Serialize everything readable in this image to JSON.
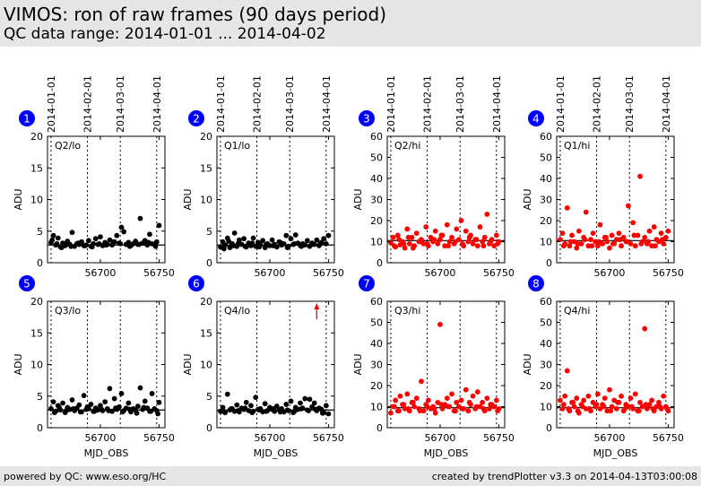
{
  "header": {
    "title": "VIMOS: ron of raw frames (90 days period)",
    "subtitle": "QC data range: 2014-01-01 ... 2014-04-02"
  },
  "footer": {
    "left": "powered by QC: www.eso.org/HC",
    "right": "created by trendPlotter v3.3 on 2014-04-13T03:00:08"
  },
  "colors": {
    "lo": "#000000",
    "hi": "#ff0000",
    "badge": "#0000ff"
  },
  "date_labels": [
    "2014-01-01",
    "2014-02-01",
    "2014-03-01",
    "2014-04-01"
  ],
  "date_mjd": [
    56658,
    56689,
    56717,
    56748
  ],
  "chart_data": [
    {
      "type": "scatter",
      "panel": "1",
      "label": "Q2/lo",
      "ylabel": "ADU",
      "xlabel": "",
      "ylim": [
        0,
        20
      ],
      "yticks": [
        0,
        5,
        10,
        15,
        20
      ],
      "xlim": [
        56655,
        56755
      ],
      "xticks": [
        56700,
        56750
      ],
      "ref": 2.8,
      "color": "black",
      "x": [
        56658,
        56660,
        56662,
        56664,
        56666,
        56668,
        56670,
        56672,
        56674,
        56676,
        56678,
        56680,
        56682,
        56684,
        56686,
        56688,
        56690,
        56692,
        56694,
        56696,
        56698,
        56700,
        56702,
        56704,
        56706,
        56708,
        56710,
        56712,
        56714,
        56716,
        56718,
        56720,
        56722,
        56724,
        56726,
        56728,
        56730,
        56732,
        56734,
        56736,
        56738,
        56740,
        56742,
        56744,
        56746,
        56748,
        56750,
        56659,
        56663,
        56667,
        56671,
        56675,
        56681,
        56687,
        56693,
        56699,
        56705,
        56711,
        56717,
        56725,
        56733,
        56741,
        56747
      ],
      "y": [
        3.2,
        4.3,
        2.8,
        3.9,
        2.5,
        3.1,
        2.7,
        3.4,
        2.9,
        4.8,
        2.6,
        3.0,
        2.9,
        3.3,
        2.7,
        2.8,
        3.5,
        2.6,
        3.0,
        3.8,
        2.9,
        4.1,
        2.7,
        3.2,
        2.9,
        3.6,
        2.8,
        3.3,
        4.3,
        3.1,
        5.6,
        4.9,
        2.9,
        3.2,
        2.7,
        3.0,
        3.4,
        2.9,
        7.0,
        3.1,
        3.5,
        2.8,
        4.5,
        3.0,
        2.9,
        3.3,
        5.9,
        3.6,
        3.0,
        2.4,
        2.9,
        2.6,
        3.1,
        2.7,
        2.5,
        3.0,
        2.8,
        3.3,
        3.0,
        2.6,
        2.9,
        3.2,
        2.6
      ]
    },
    {
      "type": "scatter",
      "panel": "2",
      "label": "Q1/lo",
      "ylabel": "ADU",
      "xlabel": "",
      "ylim": [
        0,
        20
      ],
      "yticks": [
        0,
        5,
        10,
        15,
        20
      ],
      "xlim": [
        56655,
        56755
      ],
      "xticks": [
        56700,
        56750
      ],
      "ref": 2.8,
      "color": "black",
      "x": [
        56658,
        56660,
        56662,
        56664,
        56666,
        56668,
        56670,
        56672,
        56674,
        56676,
        56678,
        56680,
        56682,
        56684,
        56686,
        56688,
        56690,
        56692,
        56694,
        56696,
        56698,
        56700,
        56702,
        56704,
        56706,
        56708,
        56710,
        56712,
        56714,
        56716,
        56718,
        56720,
        56722,
        56724,
        56726,
        56728,
        56730,
        56732,
        56734,
        56736,
        56738,
        56740,
        56742,
        56744,
        56746,
        56748,
        56750,
        56661,
        56665,
        56669,
        56673,
        56679,
        56685,
        56691,
        56697,
        56703,
        56709,
        56715,
        56721,
        56727,
        56735,
        56743
      ],
      "y": [
        2.5,
        3.3,
        2.8,
        3.9,
        2.4,
        3.0,
        4.7,
        2.6,
        3.6,
        2.9,
        3.8,
        2.5,
        3.1,
        2.7,
        3.9,
        2.6,
        3.2,
        2.8,
        3.5,
        2.4,
        3.0,
        2.7,
        3.6,
        2.9,
        2.5,
        3.3,
        2.8,
        3.0,
        4.3,
        2.6,
        3.8,
        2.9,
        4.4,
        3.1,
        2.7,
        3.0,
        2.8,
        3.5,
        2.6,
        3.1,
        2.9,
        3.6,
        2.7,
        3.2,
        3.8,
        3.0,
        4.3,
        2.2,
        3.4,
        2.7,
        3.0,
        2.6,
        3.1,
        2.5,
        2.9,
        2.7,
        3.2,
        2.4,
        3.0,
        2.6,
        2.8,
        3.1
      ]
    },
    {
      "type": "scatter",
      "panel": "3",
      "label": "Q2/hi",
      "ylabel": "ADU",
      "xlabel": "",
      "ylim": [
        0,
        60
      ],
      "yticks": [
        0,
        10,
        20,
        30,
        40,
        50,
        60
      ],
      "xlim": [
        56655,
        56755
      ],
      "xticks": [
        56700,
        56750
      ],
      "ref": 10.5,
      "color": "red",
      "x": [
        56658,
        56660,
        56662,
        56664,
        56666,
        56668,
        56670,
        56672,
        56674,
        56676,
        56678,
        56680,
        56682,
        56684,
        56686,
        56688,
        56690,
        56692,
        56694,
        56696,
        56698,
        56700,
        56702,
        56704,
        56706,
        56708,
        56710,
        56712,
        56714,
        56716,
        56718,
        56720,
        56722,
        56724,
        56726,
        56728,
        56730,
        56732,
        56734,
        56736,
        56738,
        56740,
        56742,
        56744,
        56746,
        56748,
        56750,
        56661,
        56665,
        56669,
        56673,
        56677,
        56683,
        56689,
        56695,
        56701,
        56707,
        56713,
        56719,
        56725,
        56731,
        56737,
        56743,
        56749
      ],
      "y": [
        9.5,
        12,
        7.5,
        13,
        8.5,
        10,
        7,
        16,
        9,
        12,
        8,
        14,
        10,
        11,
        9,
        17,
        8,
        12,
        10,
        15,
        9,
        11,
        13,
        8,
        18,
        10,
        12,
        9,
        16,
        11,
        20,
        8,
        15,
        10,
        13,
        9,
        11,
        8,
        17,
        10,
        12,
        23,
        9,
        11,
        8,
        13,
        10,
        8,
        11,
        9,
        12,
        7,
        10,
        9,
        11,
        13,
        8,
        10,
        9,
        12,
        11,
        8,
        10,
        9
      ]
    },
    {
      "type": "scatter",
      "panel": "4",
      "label": "Q1/hi",
      "ylabel": "ADU",
      "xlabel": "",
      "ylim": [
        0,
        60
      ],
      "yticks": [
        0,
        10,
        20,
        30,
        40,
        50,
        60
      ],
      "xlim": [
        56655,
        56755
      ],
      "xticks": [
        56700,
        56750
      ],
      "ref": 10.5,
      "color": "red",
      "x": [
        56658,
        56660,
        56662,
        56664,
        56666,
        56668,
        56670,
        56672,
        56674,
        56676,
        56678,
        56680,
        56682,
        56684,
        56686,
        56688,
        56690,
        56692,
        56694,
        56696,
        56698,
        56700,
        56702,
        56704,
        56706,
        56708,
        56710,
        56712,
        56714,
        56716,
        56718,
        56720,
        56722,
        56724,
        56726,
        56728,
        56730,
        56732,
        56734,
        56736,
        56738,
        56740,
        56742,
        56744,
        56746,
        56748,
        56750,
        56661,
        56667,
        56673,
        56679,
        56685,
        56691,
        56697,
        56703,
        56709,
        56715,
        56721,
        56727,
        56733,
        56739,
        56745
      ],
      "y": [
        11,
        14,
        9,
        26,
        8,
        13,
        10,
        7,
        15,
        9,
        12,
        24,
        8,
        11,
        14,
        10,
        8,
        18,
        9,
        12,
        10,
        7,
        13,
        9,
        11,
        14,
        8,
        12,
        10,
        27,
        9,
        19,
        8,
        13,
        41,
        10,
        12,
        9,
        15,
        8,
        17,
        11,
        10,
        14,
        9,
        12,
        15,
        8,
        10,
        9,
        11,
        8,
        10,
        12,
        9,
        11,
        10,
        13,
        9,
        10,
        8,
        11
      ]
    },
    {
      "type": "scatter",
      "panel": "5",
      "label": "Q3/lo",
      "ylabel": "ADU",
      "xlabel": "MJD_OBS",
      "ylim": [
        0,
        20
      ],
      "yticks": [
        0,
        5,
        10,
        15,
        20
      ],
      "xlim": [
        56655,
        56755
      ],
      "xticks": [
        56700,
        56750
      ],
      "ref": 2.8,
      "color": "black",
      "x": [
        56658,
        56660,
        56662,
        56664,
        56666,
        56668,
        56670,
        56672,
        56674,
        56676,
        56678,
        56680,
        56682,
        56684,
        56686,
        56688,
        56690,
        56692,
        56694,
        56696,
        56698,
        56700,
        56702,
        56704,
        56706,
        56708,
        56710,
        56712,
        56714,
        56716,
        56718,
        56720,
        56722,
        56724,
        56726,
        56728,
        56730,
        56732,
        56734,
        56736,
        56738,
        56740,
        56742,
        56744,
        56746,
        56748,
        56750,
        56661,
        56665,
        56671,
        56677,
        56683,
        56689,
        56695,
        56701,
        56707,
        56713,
        56719,
        56725,
        56731,
        56737,
        56743,
        56749
      ],
      "y": [
        3.0,
        4.1,
        2.6,
        3.5,
        2.8,
        3.9,
        2.4,
        3.2,
        2.9,
        4.4,
        2.7,
        3.1,
        3.6,
        2.5,
        5.1,
        2.9,
        3.0,
        3.7,
        2.6,
        3.1,
        2.8,
        3.5,
        2.7,
        4.1,
        3.0,
        6.2,
        2.6,
        4.6,
        2.9,
        3.3,
        5.4,
        2.7,
        3.1,
        3.9,
        2.5,
        3.0,
        2.8,
        3.4,
        6.3,
        2.9,
        4.2,
        3.1,
        2.6,
        5.4,
        3.0,
        2.7,
        4.0,
        2.4,
        3.2,
        2.7,
        3.0,
        2.5,
        3.3,
        2.6,
        2.9,
        2.7,
        3.1,
        2.5,
        2.9,
        2.3,
        3.2,
        2.6,
        2.2
      ]
    },
    {
      "type": "scatter",
      "panel": "6",
      "label": "Q4/lo",
      "ylabel": "ADU",
      "xlabel": "MJD_OBS",
      "ylim": [
        0,
        20
      ],
      "yticks": [
        0,
        5,
        10,
        15,
        20
      ],
      "xlim": [
        56655,
        56755
      ],
      "xticks": [
        56700,
        56750
      ],
      "ref": 2.8,
      "color": "black",
      "outlier_arrow_x": 56740,
      "x": [
        56658,
        56660,
        56662,
        56664,
        56666,
        56668,
        56670,
        56672,
        56674,
        56676,
        56678,
        56680,
        56682,
        56684,
        56686,
        56688,
        56690,
        56692,
        56694,
        56696,
        56698,
        56700,
        56702,
        56704,
        56706,
        56708,
        56710,
        56712,
        56714,
        56716,
        56718,
        56720,
        56722,
        56724,
        56726,
        56728,
        56730,
        56732,
        56734,
        56736,
        56738,
        56740,
        56742,
        56744,
        56746,
        56748,
        56750,
        56661,
        56667,
        56673,
        56679,
        56685,
        56691,
        56697,
        56703,
        56709,
        56715,
        56721,
        56727,
        56733,
        56739,
        56745
      ],
      "y": [
        2.6,
        3.2,
        2.4,
        5.3,
        2.8,
        3.0,
        2.6,
        3.6,
        2.5,
        3.1,
        2.9,
        4.0,
        2.7,
        3.5,
        2.6,
        4.8,
        2.9,
        3.0,
        2.5,
        3.8,
        2.7,
        3.2,
        2.9,
        2.6,
        3.4,
        2.8,
        3.0,
        2.5,
        3.7,
        2.7,
        4.2,
        2.4,
        3.2,
        2.9,
        3.9,
        3.1,
        4.6,
        2.8,
        4.5,
        3.3,
        3.9,
        2.7,
        3.1,
        2.9,
        2.4,
        3.5,
        2.2,
        2.5,
        3.0,
        2.7,
        3.1,
        2.4,
        2.8,
        2.6,
        3.0,
        2.5,
        2.8,
        2.6,
        3.0,
        2.7,
        2.9,
        2.3
      ]
    },
    {
      "type": "scatter",
      "panel": "7",
      "label": "Q3/hi",
      "ylabel": "ADU",
      "xlabel": "MJD_OBS",
      "ylim": [
        0,
        60
      ],
      "yticks": [
        0,
        10,
        20,
        30,
        40,
        50,
        60
      ],
      "xlim": [
        56655,
        56755
      ],
      "xticks": [
        56700,
        56750
      ],
      "ref": 9.5,
      "color": "red",
      "x": [
        56658,
        56660,
        56662,
        56664,
        56666,
        56668,
        56670,
        56672,
        56674,
        56676,
        56678,
        56680,
        56682,
        56684,
        56686,
        56688,
        56690,
        56692,
        56694,
        56696,
        56698,
        56700,
        56702,
        56704,
        56706,
        56708,
        56710,
        56712,
        56714,
        56716,
        56718,
        56720,
        56722,
        56724,
        56726,
        56728,
        56730,
        56732,
        56734,
        56736,
        56738,
        56740,
        56742,
        56744,
        56746,
        56748,
        56750,
        56661,
        56665,
        56669,
        56673,
        56677,
        56683,
        56689,
        56695,
        56701,
        56707,
        56713,
        56719,
        56725,
        56731,
        56737,
        56743,
        56749
      ],
      "y": [
        7,
        10,
        13,
        8,
        15,
        11,
        9,
        16,
        8,
        12,
        10,
        14,
        9,
        22,
        8,
        11,
        13,
        9,
        10,
        7,
        12,
        49,
        9,
        11,
        14,
        10,
        16,
        8,
        12,
        10,
        13,
        9,
        18,
        8,
        11,
        15,
        9,
        17,
        10,
        12,
        8,
        14,
        9,
        11,
        10,
        13,
        9,
        10,
        8,
        11,
        9,
        12,
        8,
        10,
        9,
        11,
        10,
        8,
        9,
        12,
        10,
        9,
        11,
        8
      ]
    },
    {
      "type": "scatter",
      "panel": "8",
      "label": "Q4/hi",
      "ylabel": "ADU",
      "xlabel": "MJD_OBS",
      "ylim": [
        0,
        60
      ],
      "yticks": [
        0,
        10,
        20,
        30,
        40,
        50,
        60
      ],
      "xlim": [
        56655,
        56755
      ],
      "xticks": [
        56700,
        56750
      ],
      "ref": 9.5,
      "color": "red",
      "x": [
        56658,
        56660,
        56662,
        56664,
        56666,
        56668,
        56670,
        56672,
        56674,
        56676,
        56678,
        56680,
        56682,
        56684,
        56686,
        56688,
        56690,
        56692,
        56694,
        56696,
        56698,
        56700,
        56702,
        56704,
        56706,
        56708,
        56710,
        56712,
        56714,
        56716,
        56718,
        56720,
        56722,
        56724,
        56726,
        56728,
        56730,
        56732,
        56734,
        56736,
        56738,
        56740,
        56742,
        56744,
        56746,
        56748,
        56750,
        56661,
        56665,
        56669,
        56673,
        56677,
        56683,
        56689,
        56695,
        56701,
        56707,
        56713,
        56719,
        56725,
        56731,
        56737,
        56743,
        56749
      ],
      "y": [
        13,
        9,
        15,
        27,
        8,
        12,
        10,
        14,
        7,
        11,
        13,
        9,
        15,
        8,
        12,
        10,
        16,
        9,
        11,
        14,
        8,
        18,
        10,
        13,
        9,
        12,
        15,
        8,
        11,
        10,
        14,
        9,
        16,
        8,
        12,
        10,
        47,
        9,
        11,
        13,
        8,
        10,
        12,
        9,
        15,
        10,
        8,
        11,
        9,
        12,
        8,
        10,
        9,
        11,
        10,
        8,
        12,
        9,
        10,
        8,
        11,
        9,
        10,
        9
      ]
    }
  ]
}
